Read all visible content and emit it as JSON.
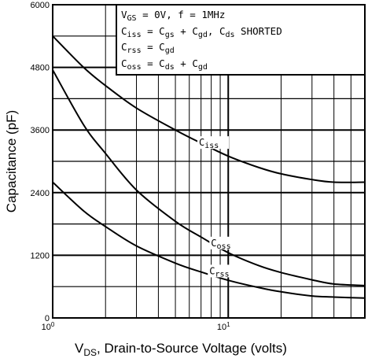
{
  "chart_data": {
    "type": "line",
    "xscale": "log",
    "xlim": [
      1,
      60
    ],
    "ylim": [
      0,
      6000
    ],
    "x_ticks": [
      {
        "value": 1,
        "base": "10",
        "exp": "0"
      },
      {
        "value": 10,
        "base": "10",
        "exp": "1"
      }
    ],
    "y_ticks": [
      "0",
      "1200",
      "2400",
      "3600",
      "4800",
      "6000"
    ],
    "y_tick_values": [
      0,
      1200,
      2400,
      3600,
      4800,
      6000
    ],
    "ylabel": "Capacitance (pF)",
    "xlabel": {
      "main": "V",
      "sub": "DS",
      "rest": ", Drain-to-Source Voltage (volts)"
    },
    "legend_box": {
      "line1": {
        "v": "V",
        "v_sub": "GS",
        "rest": " = 0V,  f = 1MHz"
      },
      "line2": {
        "c": "C",
        "c_sub": "iss",
        "eq": " = C",
        "t1_sub": "gs",
        "plus": " + C",
        "t2_sub": "gd",
        "sep": ",  C",
        "t3_sub": "ds",
        "tail": " SHORTED"
      },
      "line3": {
        "c": "C",
        "c_sub": "rss",
        "eq": " = C",
        "t1_sub": "gd"
      },
      "line4": {
        "c": "C",
        "c_sub": "oss",
        "eq": " = C",
        "t1_sub": "ds",
        "plus": " + C",
        "t2_sub": "gd"
      }
    },
    "grid": true,
    "series": [
      {
        "name": "C_iss",
        "label_main": "C",
        "label_sub": "iss",
        "x": [
          1,
          1.5,
          2,
          3,
          5,
          7,
          10,
          15,
          20,
          30,
          40,
          60
        ],
        "y": [
          5400,
          4800,
          4450,
          4020,
          3600,
          3350,
          3100,
          2880,
          2760,
          2650,
          2600,
          2600
        ]
      },
      {
        "name": "C_oss",
        "label_main": "C",
        "label_sub": "oss",
        "x": [
          1,
          1.5,
          2,
          3,
          5,
          7,
          10,
          15,
          20,
          30,
          40,
          60
        ],
        "y": [
          4750,
          3700,
          3150,
          2450,
          1850,
          1550,
          1250,
          1000,
          870,
          730,
          650,
          620
        ]
      },
      {
        "name": "C_rss",
        "label_main": "C",
        "label_sub": "rss",
        "x": [
          1,
          1.5,
          2,
          3,
          5,
          7,
          10,
          15,
          20,
          30,
          40,
          60
        ],
        "y": [
          2600,
          2050,
          1750,
          1380,
          1050,
          880,
          720,
          580,
          500,
          420,
          400,
          380
        ]
      }
    ]
  }
}
